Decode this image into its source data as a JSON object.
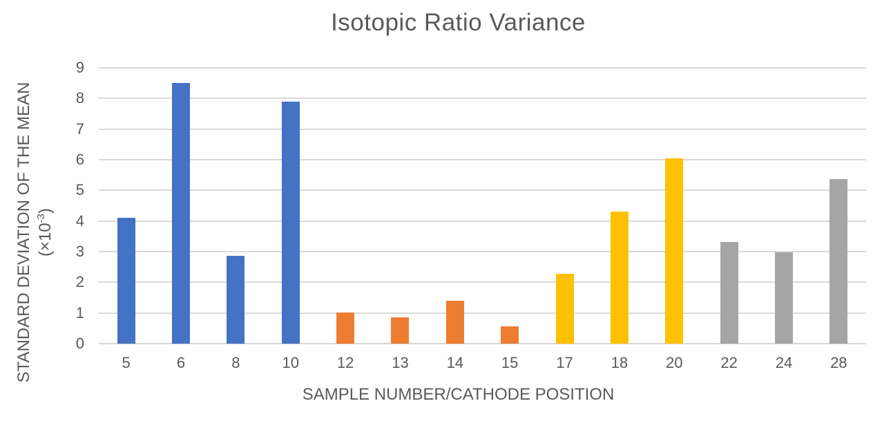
{
  "chart_data": {
    "type": "bar",
    "title": "Isotopic Ratio Variance",
    "xlabel": "SAMPLE NUMBER/CATHODE POSITION",
    "ylabel_line1": "STANDARD DEVIATION OF THE MEAN",
    "ylabel_units_prefix": "(×10",
    "ylabel_units_exponent": "-3",
    "ylabel_units_suffix": ")",
    "categories": [
      "5",
      "6",
      "8",
      "10",
      "12",
      "13",
      "14",
      "15",
      "17",
      "18",
      "20",
      "22",
      "24",
      "28"
    ],
    "values": [
      4.11,
      8.5,
      2.86,
      7.9,
      1.01,
      0.86,
      1.39,
      0.57,
      2.28,
      4.3,
      6.05,
      3.31,
      2.98,
      5.36
    ],
    "bar_colors": [
      "#4472C4",
      "#4472C4",
      "#4472C4",
      "#4472C4",
      "#ED7D31",
      "#ED7D31",
      "#ED7D31",
      "#ED7D31",
      "#FFC000",
      "#FFC000",
      "#FFC000",
      "#A5A5A5",
      "#A5A5A5",
      "#A5A5A5"
    ],
    "color_groups": {
      "blue": "#4472C4",
      "orange": "#ED7D31",
      "yellow": "#FFC000",
      "gray": "#A5A5A5"
    },
    "ylim": [
      0,
      9
    ],
    "yticks": [
      0,
      1,
      2,
      3,
      4,
      5,
      6,
      7,
      8,
      9
    ],
    "grid": "horizontal",
    "legend": "none",
    "gridline_color": "#D9D9D9",
    "axis_line_color": "#D6D6D6",
    "text_color": "#595959"
  }
}
